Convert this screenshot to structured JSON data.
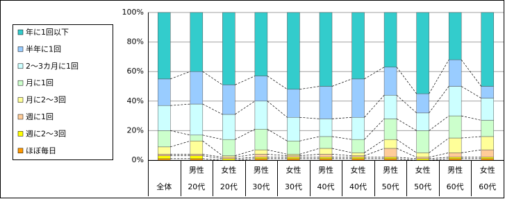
{
  "chart_data": {
    "type": "stacked-bar",
    "categories": [
      "全体",
      "20代",
      "20代",
      "30代",
      "30代",
      "40代",
      "40代",
      "50代",
      "50代",
      "60代",
      "60代"
    ],
    "category_groups": [
      null,
      "男性",
      "女性",
      "男性",
      "女性",
      "男性",
      "女性",
      "男性",
      "女性",
      "男性",
      "女性"
    ],
    "series": [
      {
        "name": "ほぼ毎日",
        "color": "#FF9900",
        "values": [
          1,
          1,
          0,
          1,
          1,
          1,
          1,
          1,
          0,
          1,
          1
        ]
      },
      {
        "name": "週に2～3回",
        "color": "#FFFF00",
        "values": [
          2,
          2,
          1,
          1,
          1,
          1,
          1,
          1,
          1,
          1,
          1
        ]
      },
      {
        "name": "週に1回",
        "color": "#FFCC99",
        "values": [
          1,
          1,
          1,
          2,
          1,
          2,
          1,
          6,
          1,
          3,
          5
        ]
      },
      {
        "name": "月に2～3回",
        "color": "#FFFF99",
        "values": [
          5,
          9,
          1,
          3,
          1,
          4,
          2,
          6,
          3,
          10,
          9
        ]
      },
      {
        "name": "月に1回",
        "color": "#CCFFCC",
        "values": [
          11,
          4,
          11,
          14,
          9,
          8,
          9,
          14,
          15,
          15,
          11
        ]
      },
      {
        "name": "2～3カ月に1回",
        "color": "#CCFFFF",
        "values": [
          17,
          21,
          17,
          19,
          16,
          12,
          15,
          16,
          12,
          20,
          15
        ]
      },
      {
        "name": "半年に1回",
        "color": "#99CCFF",
        "values": [
          18,
          22,
          20,
          17,
          19,
          22,
          26,
          19,
          13,
          18,
          8
        ]
      },
      {
        "name": "年に1回以下",
        "color": "#33CCCC",
        "values": [
          45,
          40,
          49,
          43,
          52,
          50,
          45,
          37,
          55,
          32,
          50
        ]
      }
    ],
    "ylim": [
      0,
      100
    ],
    "yticks": [
      {
        "value": 0,
        "label": "0%"
      },
      {
        "value": 20,
        "label": "20%"
      },
      {
        "value": 40,
        "label": "40%"
      },
      {
        "value": 60,
        "label": "60%"
      },
      {
        "value": 80,
        "label": "80%"
      },
      {
        "value": 100,
        "label": "100%"
      }
    ],
    "grid": true
  }
}
